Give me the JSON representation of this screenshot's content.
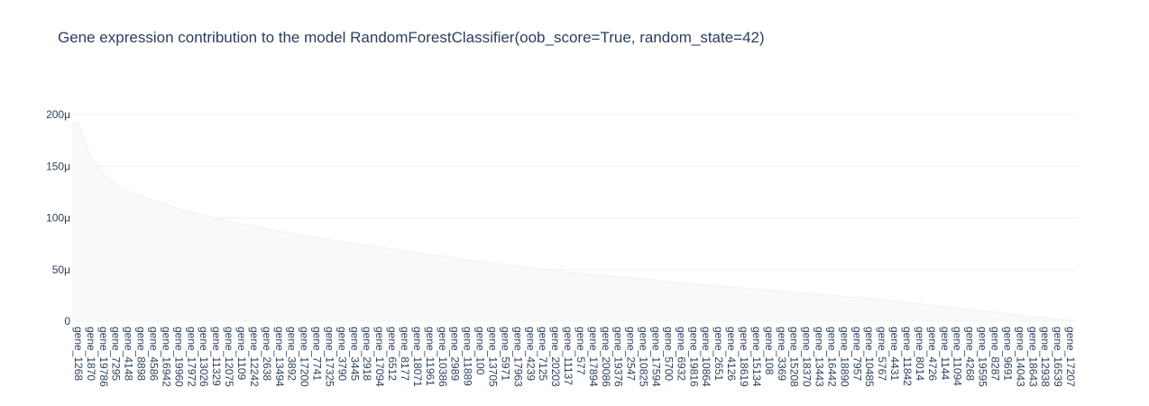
{
  "chart_data": {
    "type": "area",
    "title": "Gene expression contribution to the model RandomForestClassifier(oob_score=True, random_state=42)",
    "xlabel": "",
    "ylabel": "",
    "ylim": [
      0,
      0.0002
    ],
    "yticks": [
      {
        "value": 0,
        "label": "0"
      },
      {
        "value": 5e-05,
        "label": "50μ"
      },
      {
        "value": 0.0001,
        "label": "100μ"
      },
      {
        "value": 0.00015,
        "label": "150μ"
      },
      {
        "value": 0.0002,
        "label": "200μ"
      }
    ],
    "grid": true,
    "fill_color": "#fbf8fa",
    "line_color": "#f7eef4",
    "categories": [
      "gene_1268",
      "gene_1870",
      "gene_19786",
      "gene_7295",
      "gene_4148",
      "gene_8898",
      "gene_4586",
      "gene_16942",
      "gene_19960",
      "gene_17972",
      "gene_13026",
      "gene_11329",
      "gene_12075",
      "gene_1109",
      "gene_12242",
      "gene_2638",
      "gene_13494",
      "gene_3892",
      "gene_17200",
      "gene_7741",
      "gene_17325",
      "gene_3790",
      "gene_3445",
      "gene_2918",
      "gene_17094",
      "gene_6512",
      "gene_8177",
      "gene_18071",
      "gene_11961",
      "gene_10386",
      "gene_2989",
      "gene_11889",
      "gene_100",
      "gene_13705",
      "gene_5971",
      "gene_17963",
      "gene_4239",
      "gene_7125",
      "gene_20203",
      "gene_11137",
      "gene_577",
      "gene_17894",
      "gene_20086",
      "gene_19376",
      "gene_2547",
      "gene_10825",
      "gene_17594",
      "gene_5700",
      "gene_6932",
      "gene_19816",
      "gene_10864",
      "gene_2651",
      "gene_4126",
      "gene_18619",
      "gene_15134",
      "gene_108",
      "gene_3369",
      "gene_15208",
      "gene_18370",
      "gene_13443",
      "gene_16442",
      "gene_18890",
      "gene_7957",
      "gene_10485",
      "gene_5767",
      "gene_4431",
      "gene_11842",
      "gene_8014",
      "gene_4726",
      "gene_1144",
      "gene_11094",
      "gene_4268",
      "gene_19595",
      "gene_8287",
      "gene_9691",
      "gene_14043",
      "gene_18643",
      "gene_12938",
      "gene_16539",
      "gene_17207"
    ],
    "values": [
      0.000192,
      0.000158,
      0.000142,
      0.000133,
      0.000126,
      0.000121,
      0.000117,
      0.000113,
      0.000109,
      0.000106,
      0.000103,
      0.0001,
      9.7e-05,
      9.4e-05,
      9.2e-05,
      9e-05,
      8.7e-05,
      8.5e-05,
      8.3e-05,
      8.1e-05,
      7.9e-05,
      7.7e-05,
      7.5e-05,
      7.3e-05,
      7.2e-05,
      7e-05,
      6.8e-05,
      6.6e-05,
      6.4e-05,
      6.3e-05,
      6.1e-05,
      5.9e-05,
      5.8e-05,
      5.6e-05,
      5.5e-05,
      5.3e-05,
      5.2e-05,
      5e-05,
      4.9e-05,
      4.7e-05,
      4.6e-05,
      4.5e-05,
      4.4e-05,
      4.3e-05,
      4.2e-05,
      4.1e-05,
      4e-05,
      3.8e-05,
      3.7e-05,
      3.6e-05,
      3.5e-05,
      3.4e-05,
      3.3e-05,
      3.2e-05,
      3.1e-05,
      3e-05,
      2.9e-05,
      2.8e-05,
      2.7e-05,
      2.6e-05,
      2.5e-05,
      2.4e-05,
      2.3e-05,
      2.2e-05,
      2.1e-05,
      1.9e-05,
      1.8e-05,
      1.7e-05,
      1.5e-05,
      1.4e-05,
      1.3e-05,
      1.1e-05,
      1e-05,
      9e-06,
      7e-06,
      6e-06,
      4e-06,
      3e-06,
      2e-06,
      1e-06
    ]
  }
}
